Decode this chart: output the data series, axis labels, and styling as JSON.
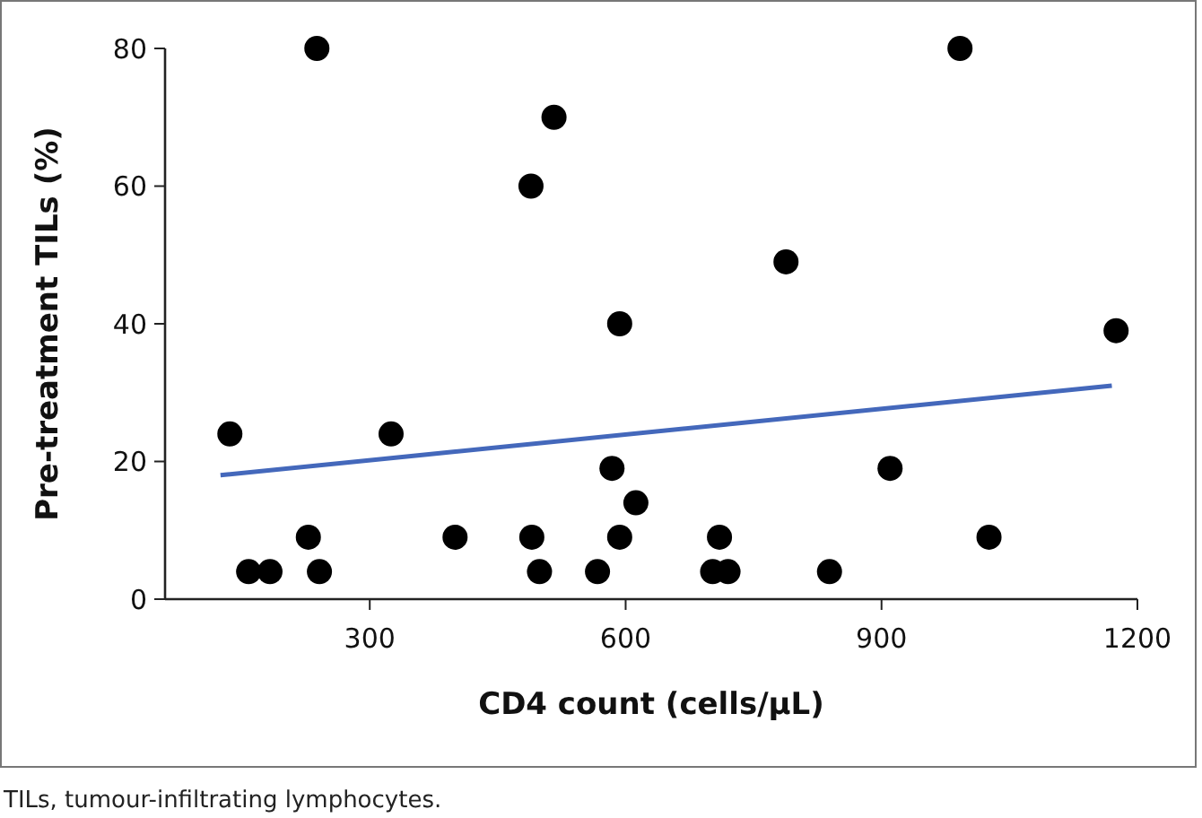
{
  "chart_data": {
    "type": "scatter",
    "xlabel": "CD4 count (cells/µL)",
    "ylabel": "Pre-treatment TILs (%)",
    "annotations": [
      "TILs, tumour-infiltrating lymphocytes."
    ],
    "xlim": [
      60,
      1200
    ],
    "ylim": [
      0,
      80
    ],
    "xticks": [
      300,
      600,
      900,
      1200
    ],
    "yticks": [
      0,
      20,
      40,
      60,
      80
    ],
    "grid": false,
    "marker": "circle",
    "series": [
      {
        "color": "#000000",
        "x": [
          136,
          158,
          183,
          228,
          238,
          241,
          325,
          400,
          489,
          490,
          499,
          516,
          567,
          584,
          593,
          593,
          612,
          992,
          788,
          1175,
          910,
          710,
          702,
          720,
          839,
          1026
        ],
        "values": [
          24,
          4,
          4,
          9,
          80,
          4,
          24,
          9,
          60,
          9,
          4,
          70,
          4,
          19,
          40,
          9,
          14,
          80,
          49,
          39,
          19,
          9,
          4,
          4,
          4,
          9
        ]
      },
      {
        "type": "line",
        "color": "#4468bb",
        "line_style": "solid",
        "marker": "none",
        "x": [
          125,
          1170
        ],
        "values": [
          18,
          31
        ]
      }
    ]
  }
}
